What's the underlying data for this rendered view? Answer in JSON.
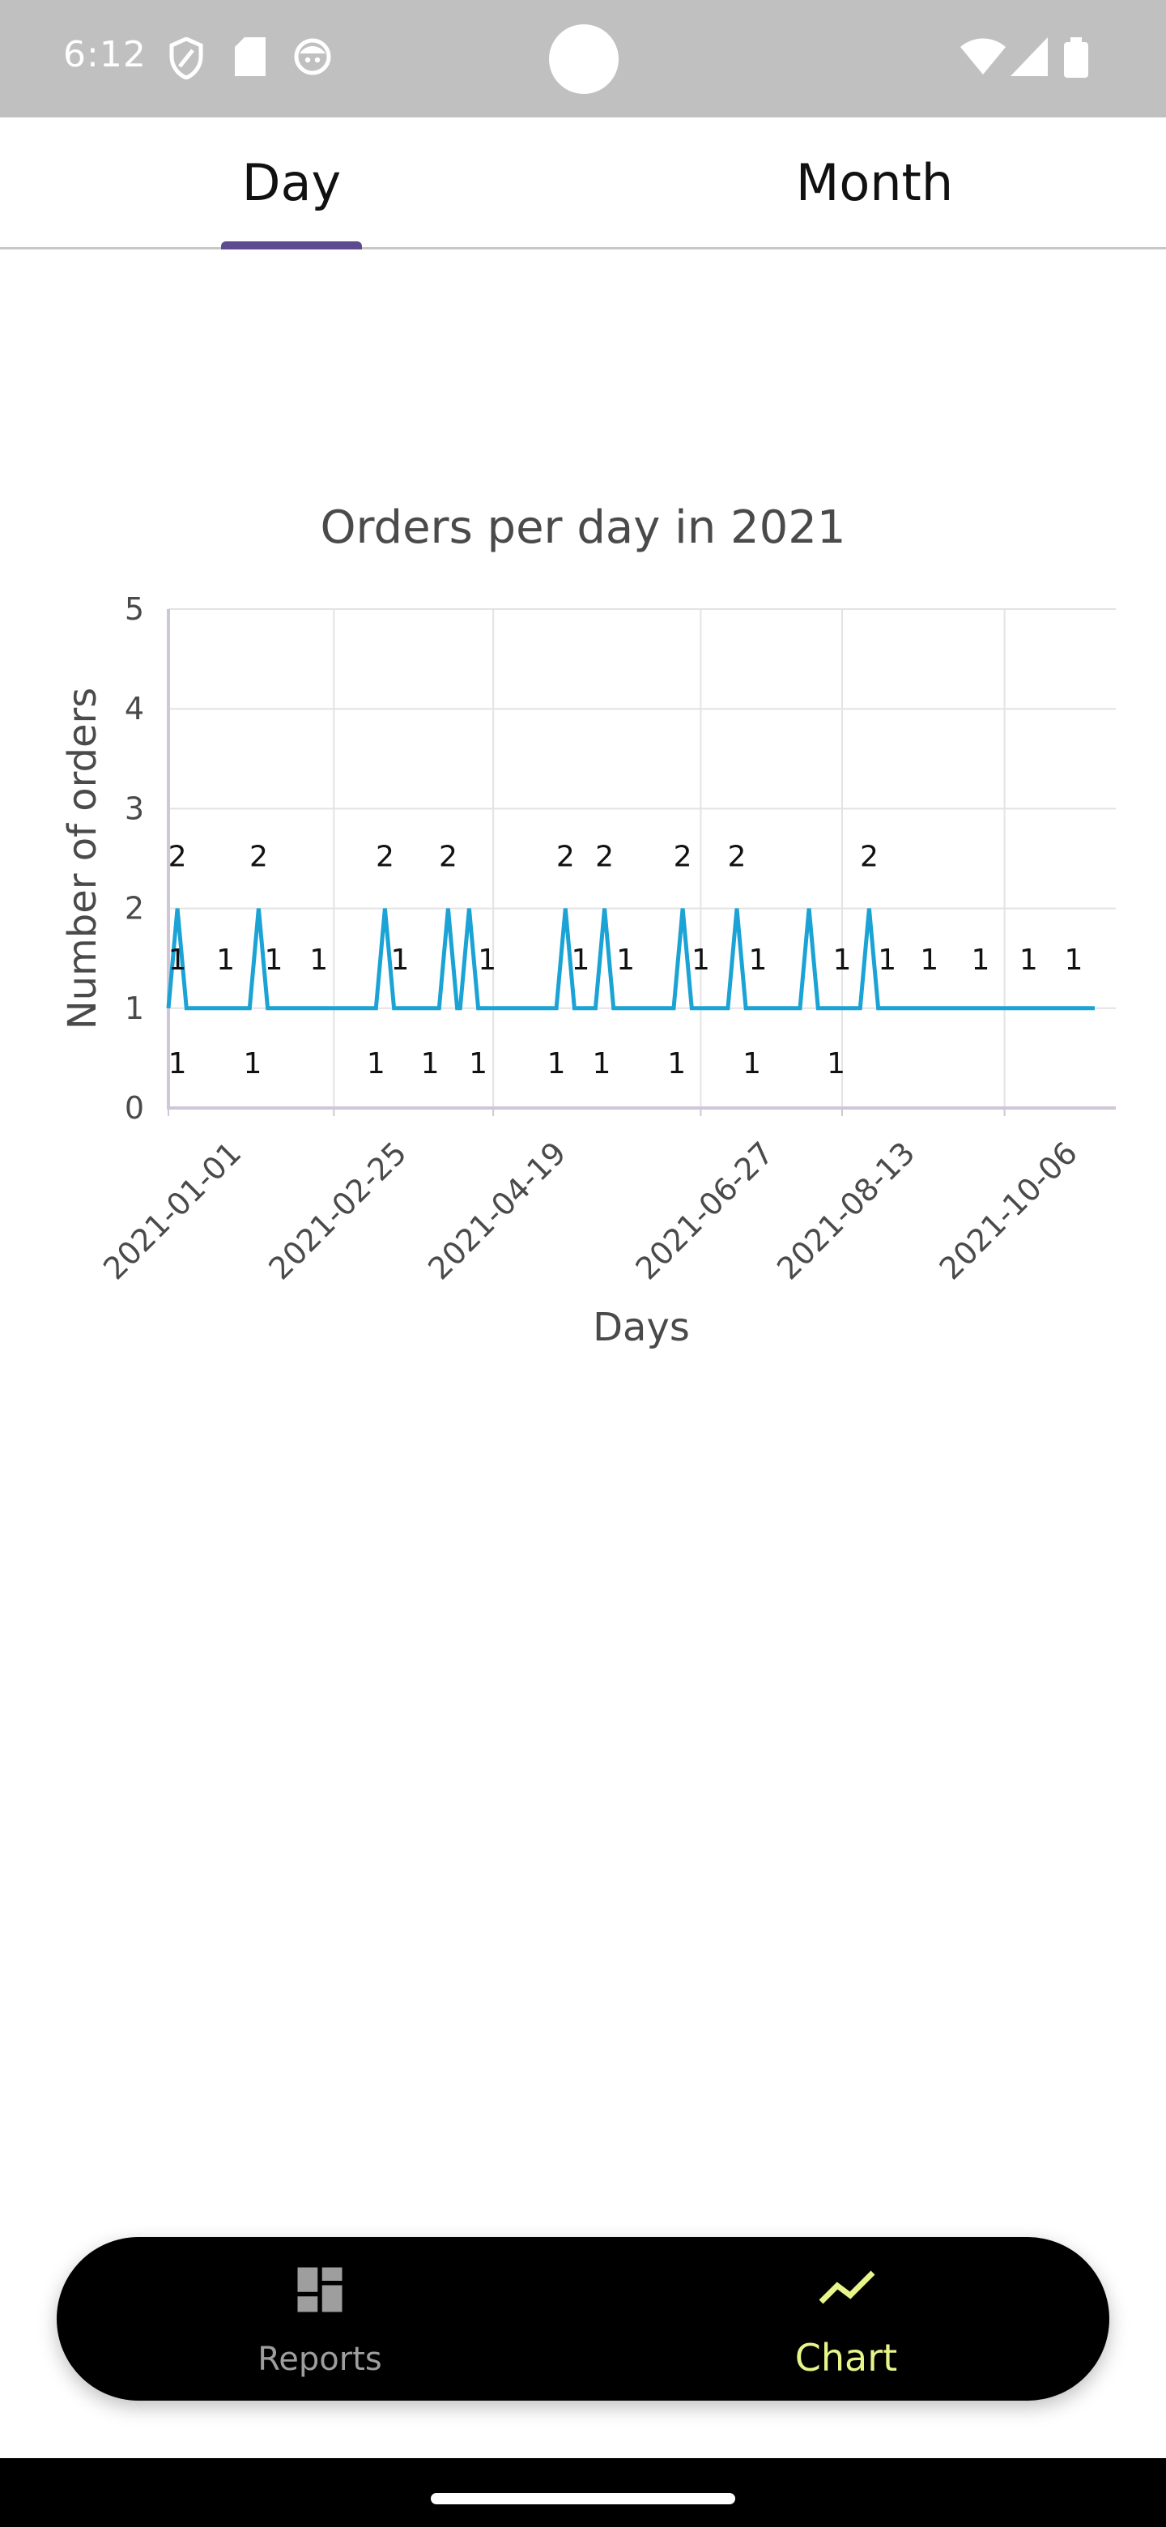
{
  "status_bar": {
    "time": "6:12",
    "icons_left": [
      "shield-icon",
      "sd-card-icon",
      "face-icon"
    ],
    "icons_right": [
      "wifi-icon",
      "cell-signal-icon",
      "battery-icon"
    ]
  },
  "tabs": [
    {
      "label": "Day",
      "selected": true
    },
    {
      "label": "Month",
      "selected": false
    }
  ],
  "chart_data": {
    "type": "line",
    "title": "Orders per day in 2021",
    "xlabel": "Days",
    "ylabel": "Number of orders",
    "ylim": [
      0,
      5
    ],
    "y_ticks": [
      "0",
      "1",
      "2",
      "3",
      "4",
      "5"
    ],
    "x_tick_labels": [
      "2021-01-01",
      "2021-02-25",
      "2021-04-19",
      "2021-06-27",
      "2021-08-13",
      "2021-10-06"
    ],
    "grid": true,
    "legend": "none",
    "series": [
      {
        "color": "#1aa3d4",
        "points": [
          [
            "2021-01-01",
            1
          ],
          [
            "2021-01-04",
            2
          ],
          [
            "2021-01-07",
            1
          ],
          [
            "2021-01-09",
            1
          ],
          [
            "2021-01-12",
            1
          ],
          [
            "2021-01-20",
            1
          ],
          [
            "2021-01-28",
            1
          ],
          [
            "2021-01-31",
            2
          ],
          [
            "2021-02-03",
            1
          ],
          [
            "2021-02-05",
            1
          ],
          [
            "2021-02-10",
            1
          ],
          [
            "2021-02-17",
            1
          ],
          [
            "2021-02-25",
            1
          ],
          [
            "2021-03-04",
            1
          ],
          [
            "2021-03-11",
            1
          ],
          [
            "2021-03-14",
            2
          ],
          [
            "2021-03-17",
            1
          ],
          [
            "2021-03-22",
            1
          ],
          [
            "2021-03-28",
            1
          ],
          [
            "2021-04-01",
            1
          ],
          [
            "2021-04-04",
            2
          ],
          [
            "2021-04-07",
            1
          ],
          [
            "2021-04-08",
            1
          ],
          [
            "2021-04-11",
            2
          ],
          [
            "2021-04-14",
            1
          ],
          [
            "2021-04-16",
            1
          ],
          [
            "2021-04-19",
            1
          ],
          [
            "2021-05-02",
            1
          ],
          [
            "2021-05-10",
            1
          ],
          [
            "2021-05-13",
            2
          ],
          [
            "2021-05-16",
            1
          ],
          [
            "2021-05-19",
            1
          ],
          [
            "2021-05-23",
            1
          ],
          [
            "2021-05-26",
            2
          ],
          [
            "2021-05-29",
            1
          ],
          [
            "2021-06-01",
            1
          ],
          [
            "2021-06-10",
            1
          ],
          [
            "2021-06-18",
            1
          ],
          [
            "2021-06-21",
            2
          ],
          [
            "2021-06-24",
            1
          ],
          [
            "2021-06-27",
            1
          ],
          [
            "2021-07-06",
            1
          ],
          [
            "2021-07-09",
            2
          ],
          [
            "2021-07-12",
            1
          ],
          [
            "2021-07-15",
            1
          ],
          [
            "2021-07-22",
            1
          ],
          [
            "2021-07-30",
            1
          ],
          [
            "2021-08-02",
            2
          ],
          [
            "2021-08-05",
            1
          ],
          [
            "2021-08-07",
            1
          ],
          [
            "2021-08-13",
            1
          ],
          [
            "2021-08-19",
            1
          ],
          [
            "2021-08-22",
            2
          ],
          [
            "2021-08-25",
            1
          ],
          [
            "2021-08-28",
            1
          ],
          [
            "2021-09-10",
            1
          ],
          [
            "2021-09-25",
            1
          ],
          [
            "2021-10-06",
            1
          ],
          [
            "2021-10-20",
            1
          ],
          [
            "2021-11-05",
            1
          ]
        ]
      }
    ],
    "data_labels": [
      {
        "x": "2021-01-04",
        "text": "2",
        "pos": "above"
      },
      {
        "x": "2021-01-31",
        "text": "2",
        "pos": "above"
      },
      {
        "x": "2021-03-14",
        "text": "2",
        "pos": "above"
      },
      {
        "x": "2021-04-04",
        "text": "2",
        "pos": "above"
      },
      {
        "x": "2021-05-13",
        "text": "2",
        "pos": "above"
      },
      {
        "x": "2021-05-26",
        "text": "2",
        "pos": "above"
      },
      {
        "x": "2021-06-21",
        "text": "2",
        "pos": "above"
      },
      {
        "x": "2021-07-09",
        "text": "2",
        "pos": "above"
      },
      {
        "x": "2021-08-22",
        "text": "2",
        "pos": "above"
      },
      {
        "x": "2021-01-04",
        "text": "1",
        "pos": "mid"
      },
      {
        "x": "2021-01-20",
        "text": "1",
        "pos": "mid"
      },
      {
        "x": "2021-02-05",
        "text": "1",
        "pos": "mid"
      },
      {
        "x": "2021-02-20",
        "text": "1",
        "pos": "mid"
      },
      {
        "x": "2021-03-19",
        "text": "1",
        "pos": "mid"
      },
      {
        "x": "2021-04-17",
        "text": "1",
        "pos": "mid"
      },
      {
        "x": "2021-05-18",
        "text": "1",
        "pos": "mid"
      },
      {
        "x": "2021-06-02",
        "text": "1",
        "pos": "mid"
      },
      {
        "x": "2021-06-27",
        "text": "1",
        "pos": "mid"
      },
      {
        "x": "2021-07-16",
        "text": "1",
        "pos": "mid"
      },
      {
        "x": "2021-08-13",
        "text": "1",
        "pos": "mid"
      },
      {
        "x": "2021-08-28",
        "text": "1",
        "pos": "mid"
      },
      {
        "x": "2021-09-11",
        "text": "1",
        "pos": "mid"
      },
      {
        "x": "2021-09-28",
        "text": "1",
        "pos": "mid"
      },
      {
        "x": "2021-10-14",
        "text": "1",
        "pos": "mid"
      },
      {
        "x": "2021-10-29",
        "text": "1",
        "pos": "mid"
      },
      {
        "x": "2021-01-04",
        "text": "1",
        "pos": "below"
      },
      {
        "x": "2021-01-29",
        "text": "1",
        "pos": "below"
      },
      {
        "x": "2021-03-11",
        "text": "1",
        "pos": "below"
      },
      {
        "x": "2021-03-29",
        "text": "1",
        "pos": "below"
      },
      {
        "x": "2021-04-14",
        "text": "1",
        "pos": "below"
      },
      {
        "x": "2021-05-10",
        "text": "1",
        "pos": "below"
      },
      {
        "x": "2021-05-25",
        "text": "1",
        "pos": "below"
      },
      {
        "x": "2021-06-19",
        "text": "1",
        "pos": "below"
      },
      {
        "x": "2021-07-14",
        "text": "1",
        "pos": "below"
      },
      {
        "x": "2021-08-11",
        "text": "1",
        "pos": "below"
      }
    ]
  },
  "bottom_nav": {
    "items": [
      {
        "label": "Reports",
        "icon": "dashboard-icon",
        "active": false
      },
      {
        "label": "Chart",
        "icon": "trending-line-icon",
        "active": true
      }
    ],
    "active_color": "#e8f58a",
    "inactive_color": "#9e9e9e"
  }
}
